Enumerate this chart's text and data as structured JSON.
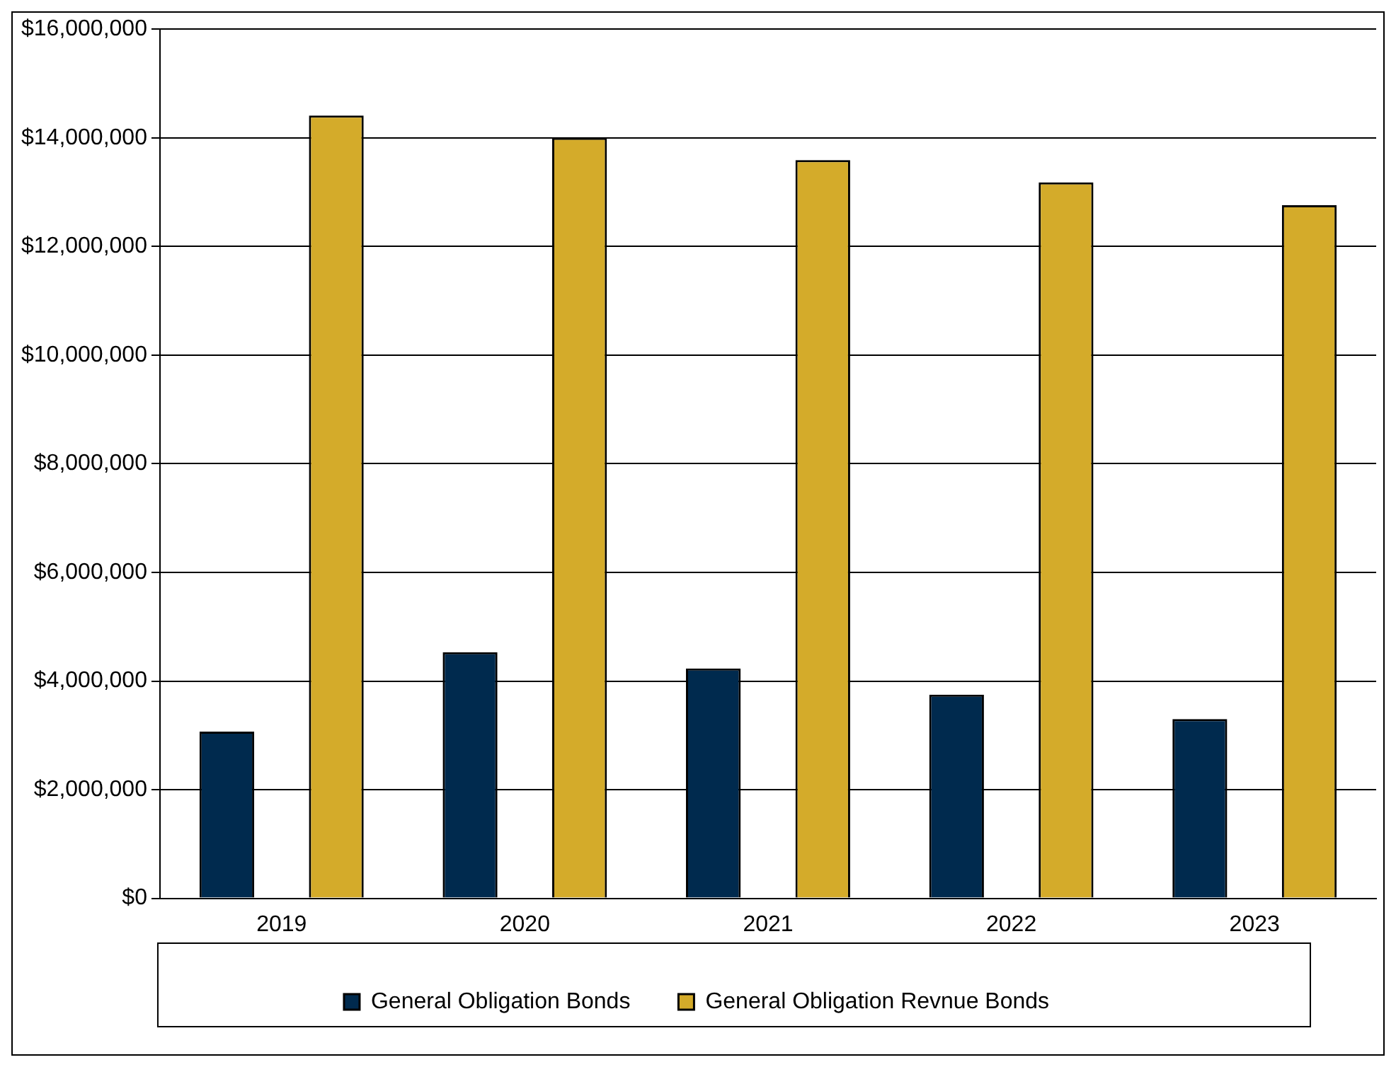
{
  "chart_data": {
    "type": "bar",
    "categories": [
      "2019",
      "2020",
      "2021",
      "2022",
      "2023"
    ],
    "series": [
      {
        "name": "General Obligation Bonds",
        "color": "#002a4e",
        "values": [
          3070000,
          4530000,
          4230000,
          3750000,
          3300000
        ]
      },
      {
        "name": "General Obligation Revnue Bonds",
        "color": "#d4ab2a",
        "values": [
          14410000,
          14000000,
          13590000,
          13180000,
          12760000
        ]
      }
    ],
    "ylim": [
      0,
      16000000
    ],
    "yticks": [
      {
        "value": 0,
        "label": "$0"
      },
      {
        "value": 2000000,
        "label": "$2,000,000"
      },
      {
        "value": 4000000,
        "label": "$4,000,000"
      },
      {
        "value": 6000000,
        "label": "$6,000,000"
      },
      {
        "value": 8000000,
        "label": "$8,000,000"
      },
      {
        "value": 10000000,
        "label": "$10,000,000"
      },
      {
        "value": 12000000,
        "label": "$12,000,000"
      },
      {
        "value": 14000000,
        "label": "$14,000,000"
      },
      {
        "value": 16000000,
        "label": "$16,000,000"
      }
    ],
    "grid": "y",
    "legend": "bottom"
  }
}
